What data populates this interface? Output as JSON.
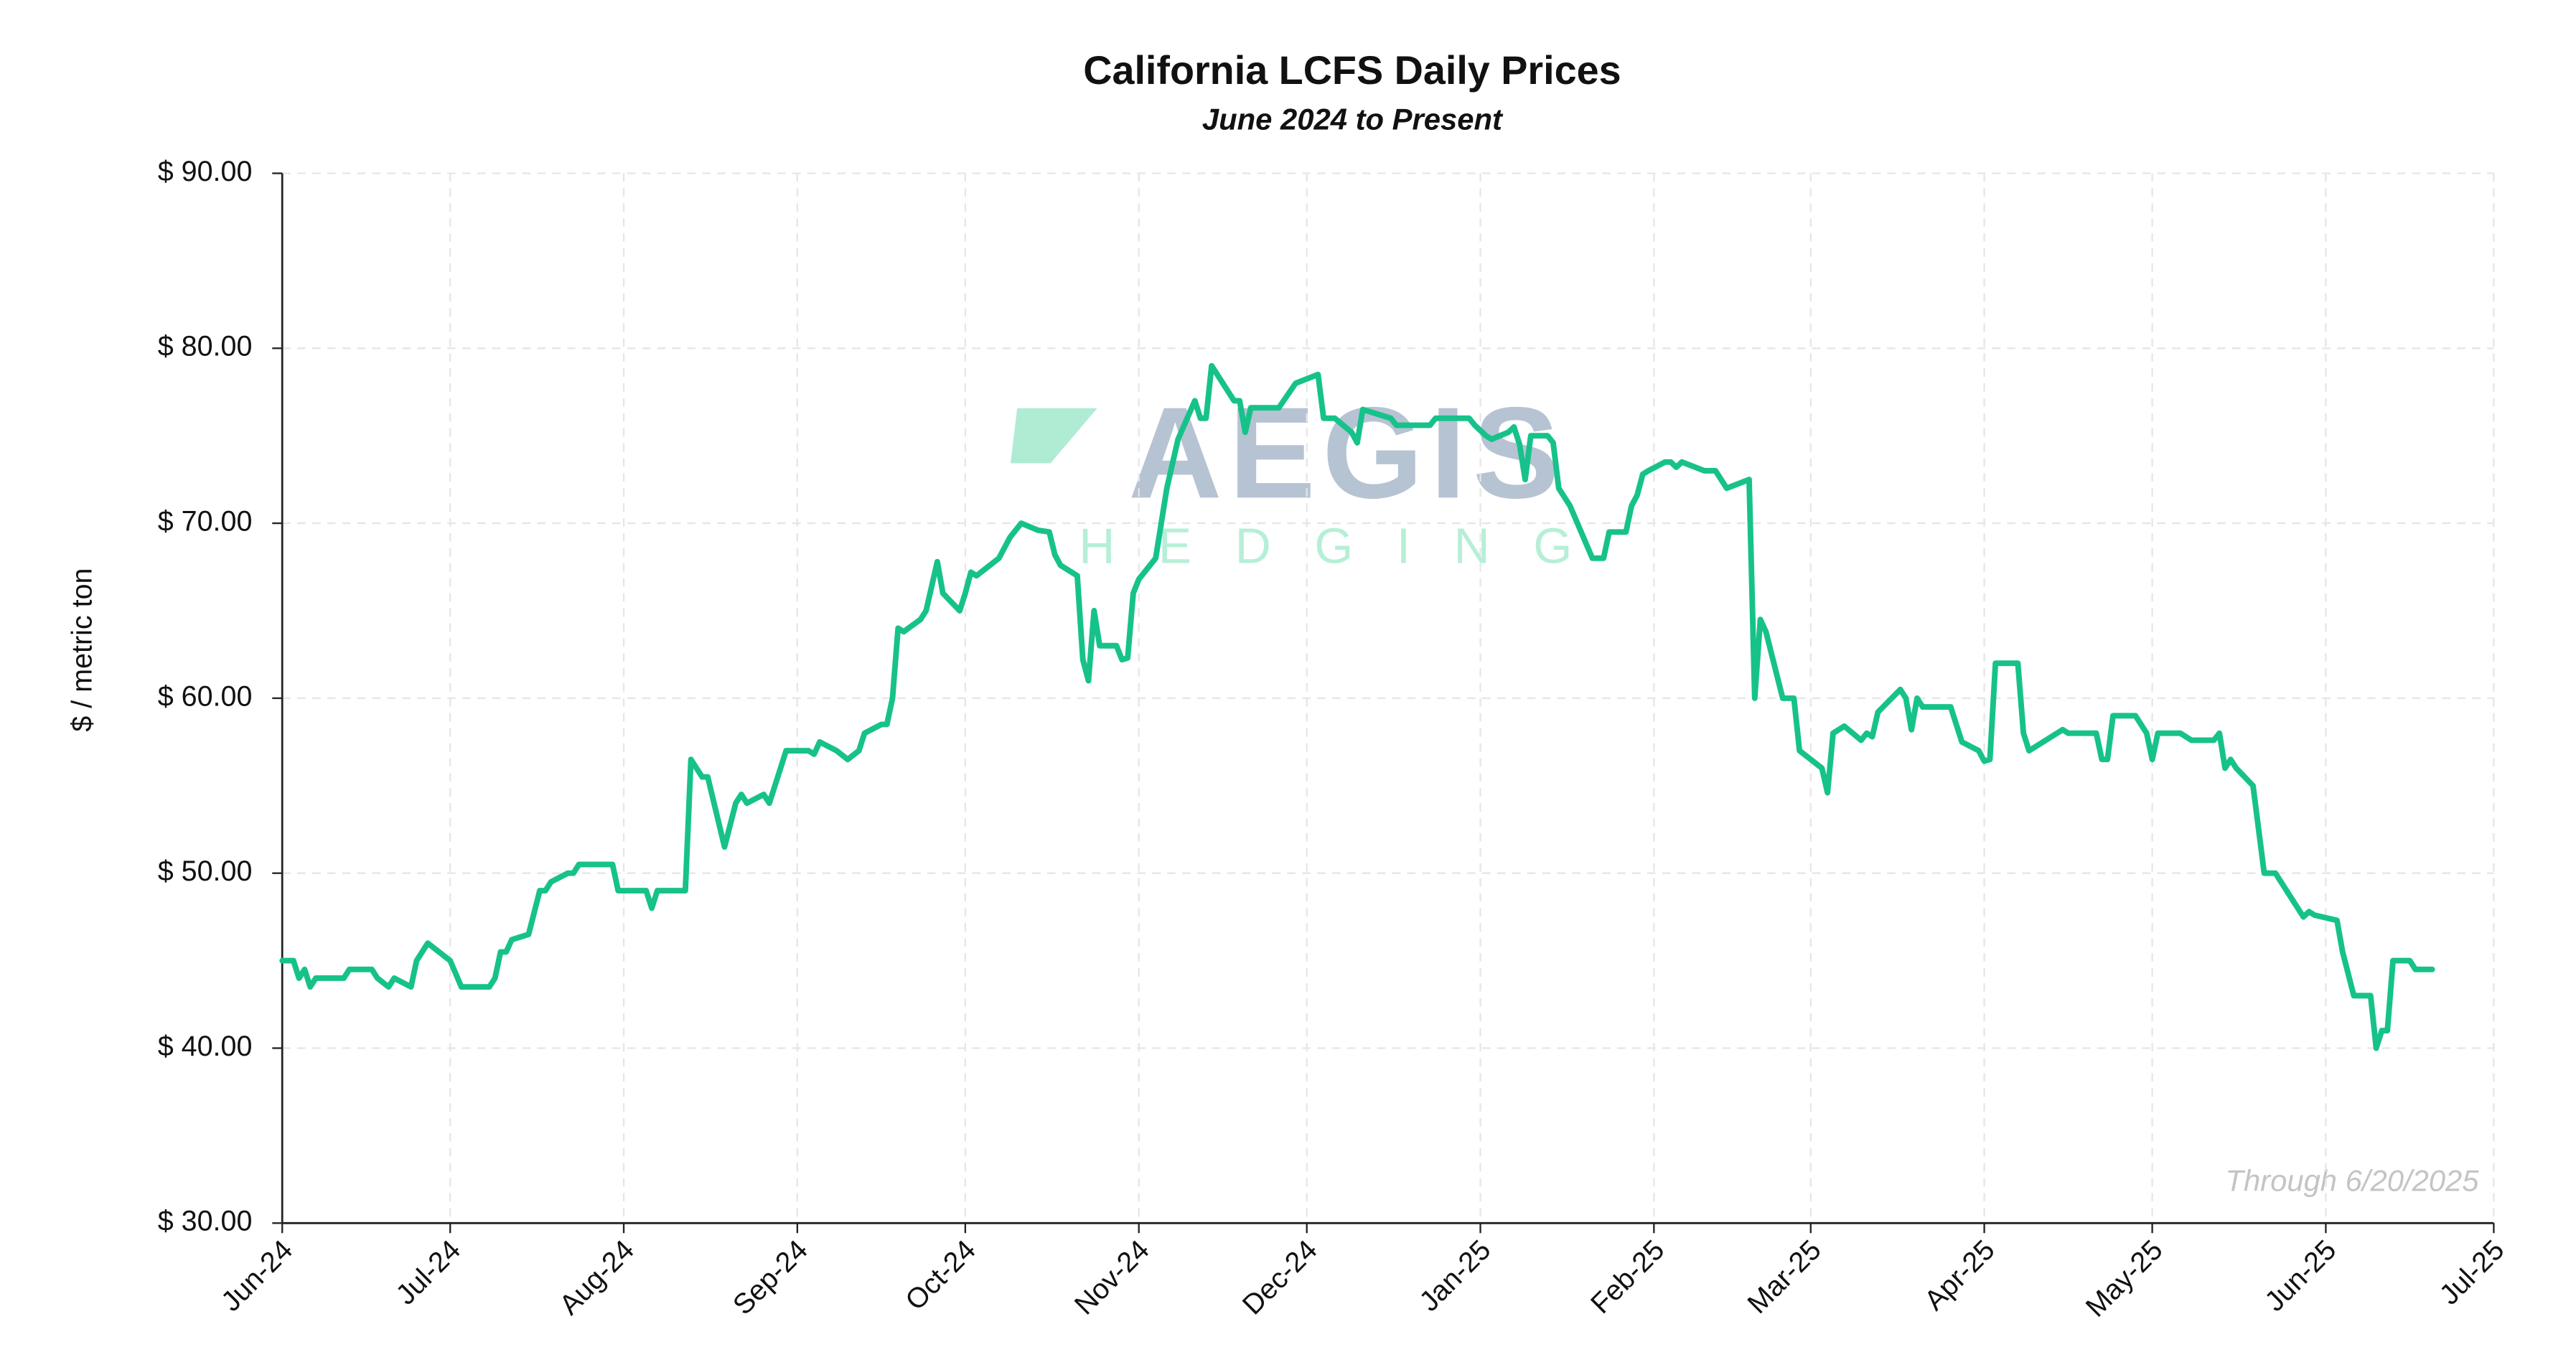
{
  "chart_data": {
    "type": "line",
    "title": "California LCFS Daily Prices",
    "subtitle": "June 2024 to Present",
    "ylabel": "$ / metric ton",
    "annotation": "Through 6/20/2025",
    "watermark": [
      "AEGIS",
      "HEDGING"
    ],
    "color": "#17c28a",
    "grid": true,
    "xlim": [
      "2024-06-01",
      "2025-07-01"
    ],
    "xticks": [
      {
        "value": "2024-06-01",
        "label": "Jun-24"
      },
      {
        "value": "2024-07-01",
        "label": "Jul-24"
      },
      {
        "value": "2024-08-01",
        "label": "Aug-24"
      },
      {
        "value": "2024-09-01",
        "label": "Sep-24"
      },
      {
        "value": "2024-10-01",
        "label": "Oct-24"
      },
      {
        "value": "2024-11-01",
        "label": "Nov-24"
      },
      {
        "value": "2024-12-01",
        "label": "Dec-24"
      },
      {
        "value": "2025-01-01",
        "label": "Jan-25"
      },
      {
        "value": "2025-02-01",
        "label": "Feb-25"
      },
      {
        "value": "2025-03-01",
        "label": "Mar-25"
      },
      {
        "value": "2025-04-01",
        "label": "Apr-25"
      },
      {
        "value": "2025-05-01",
        "label": "May-25"
      },
      {
        "value": "2025-06-01",
        "label": "Jun-25"
      },
      {
        "value": "2025-07-01",
        "label": "Jul-25"
      }
    ],
    "ylim": [
      30,
      90
    ],
    "yticks": [
      {
        "value": 30,
        "label": "$ 30.00"
      },
      {
        "value": 40,
        "label": "$ 40.00"
      },
      {
        "value": 50,
        "label": "$ 50.00"
      },
      {
        "value": 60,
        "label": "$ 60.00"
      },
      {
        "value": 70,
        "label": "$ 70.00"
      },
      {
        "value": 80,
        "label": "$ 80.00"
      },
      {
        "value": 90,
        "label": "$ 90.00"
      }
    ],
    "x": [
      "2024-06-01",
      "2024-06-03",
      "2024-06-04",
      "2024-06-05",
      "2024-06-06",
      "2024-06-07",
      "2024-06-12",
      "2024-06-13",
      "2024-06-17",
      "2024-06-18",
      "2024-06-20",
      "2024-06-21",
      "2024-06-24",
      "2024-06-25",
      "2024-06-26",
      "2024-06-27",
      "2024-07-01",
      "2024-07-03",
      "2024-07-08",
      "2024-07-09",
      "2024-07-10",
      "2024-07-11",
      "2024-07-12",
      "2024-07-15",
      "2024-07-17",
      "2024-07-18",
      "2024-07-19",
      "2024-07-22",
      "2024-07-23",
      "2024-07-24",
      "2024-07-30",
      "2024-07-31",
      "2024-08-05",
      "2024-08-06",
      "2024-08-07",
      "2024-08-12",
      "2024-08-13",
      "2024-08-15",
      "2024-08-16",
      "2024-08-19",
      "2024-08-21",
      "2024-08-22",
      "2024-08-23",
      "2024-08-26",
      "2024-08-27",
      "2024-08-29",
      "2024-08-30",
      "2024-09-03",
      "2024-09-04",
      "2024-09-05",
      "2024-09-08",
      "2024-09-10",
      "2024-09-12",
      "2024-09-13",
      "2024-09-16",
      "2024-09-17",
      "2024-09-18",
      "2024-09-19",
      "2024-09-20",
      "2024-09-23",
      "2024-09-24",
      "2024-09-26",
      "2024-09-27",
      "2024-09-30",
      "2024-10-01",
      "2024-10-02",
      "2024-10-03",
      "2024-10-07",
      "2024-10-09",
      "2024-10-11",
      "2024-10-14",
      "2024-10-16",
      "2024-10-17",
      "2024-10-18",
      "2024-10-21",
      "2024-10-22",
      "2024-10-23",
      "2024-10-24",
      "2024-10-25",
      "2024-10-28",
      "2024-10-29",
      "2024-10-30",
      "2024-10-31",
      "2024-11-01",
      "2024-11-04",
      "2024-11-06",
      "2024-11-08",
      "2024-11-11",
      "2024-11-12",
      "2024-11-13",
      "2024-11-14",
      "2024-11-18",
      "2024-11-19",
      "2024-11-20",
      "2024-11-21",
      "2024-11-26",
      "2024-11-29",
      "2024-12-03",
      "2024-12-04",
      "2024-12-06",
      "2024-12-09",
      "2024-12-10",
      "2024-12-11",
      "2024-12-12",
      "2024-12-16",
      "2024-12-17",
      "2024-12-23",
      "2024-12-24",
      "2024-12-30",
      "2024-12-31",
      "2025-01-02",
      "2025-01-03",
      "2025-01-06",
      "2025-01-07",
      "2025-01-08",
      "2025-01-09",
      "2025-01-10",
      "2025-01-13",
      "2025-01-14",
      "2025-01-15",
      "2025-01-17",
      "2025-01-21",
      "2025-01-23",
      "2025-01-24",
      "2025-01-27",
      "2025-01-28",
      "2025-01-29",
      "2025-01-30",
      "2025-01-31",
      "2025-02-03",
      "2025-02-04",
      "2025-02-05",
      "2025-02-06",
      "2025-02-10",
      "2025-02-12",
      "2025-02-14",
      "2025-02-18",
      "2025-02-19",
      "2025-02-20",
      "2025-02-21",
      "2025-02-24",
      "2025-02-26",
      "2025-02-27",
      "2025-03-03",
      "2025-03-04",
      "2025-03-05",
      "2025-03-06",
      "2025-03-07",
      "2025-03-10",
      "2025-03-11",
      "2025-03-12",
      "2025-03-13",
      "2025-03-17",
      "2025-03-18",
      "2025-03-19",
      "2025-03-20",
      "2025-03-21",
      "2025-03-26",
      "2025-03-28",
      "2025-03-31",
      "2025-04-01",
      "2025-04-02",
      "2025-04-03",
      "2025-04-07",
      "2025-04-08",
      "2025-04-09",
      "2025-04-14",
      "2025-04-15",
      "2025-04-16",
      "2025-04-21",
      "2025-04-22",
      "2025-04-23",
      "2025-04-24",
      "2025-04-28",
      "2025-04-30",
      "2025-05-01",
      "2025-05-02",
      "2025-05-06",
      "2025-05-08",
      "2025-05-12",
      "2025-05-13",
      "2025-05-14",
      "2025-05-15",
      "2025-05-16",
      "2025-05-19",
      "2025-05-21",
      "2025-05-23",
      "2025-05-28",
      "2025-05-29",
      "2025-05-30",
      "2025-06-03",
      "2025-06-04",
      "2025-06-06",
      "2025-06-09",
      "2025-06-10",
      "2025-06-11",
      "2025-06-12",
      "2025-06-13",
      "2025-06-16",
      "2025-06-17",
      "2025-06-20"
    ],
    "values": [
      45,
      45,
      44,
      44.5,
      43.5,
      44,
      44,
      44.5,
      44.5,
      44,
      43.5,
      44,
      43.5,
      45,
      45.5,
      46,
      45,
      43.5,
      43.5,
      44,
      45.5,
      45.5,
      46.2,
      46.5,
      49,
      49,
      49.5,
      50,
      50,
      50.5,
      50.5,
      49,
      49,
      48,
      49,
      49,
      56.5,
      55.5,
      55.5,
      51.5,
      54,
      54.5,
      54,
      54.5,
      54,
      56,
      57,
      57,
      56.8,
      57.5,
      57,
      56.5,
      57,
      58,
      58.5,
      58.5,
      60,
      64,
      63.8,
      64.5,
      65,
      67.8,
      66,
      65,
      66,
      67.2,
      67,
      68,
      69.2,
      70,
      69.6,
      69.5,
      68.2,
      67.6,
      67,
      62.2,
      61,
      65,
      63,
      63,
      62.2,
      62.3,
      66,
      66.8,
      68,
      72,
      74.8,
      77,
      76,
      76,
      79,
      77,
      77,
      75.2,
      76.6,
      76.6,
      78,
      78.5,
      76,
      76,
      75.2,
      74.6,
      76.5,
      76.4,
      76,
      75.6,
      75.6,
      76,
      76,
      75.6,
      75,
      74.8,
      75.2,
      75.5,
      74.5,
      72.5,
      75,
      75,
      74.6,
      72,
      71,
      68,
      68,
      69.5,
      69.5,
      71,
      71.6,
      72.8,
      73,
      73.5,
      73.5,
      73.2,
      73.5,
      73,
      73,
      72,
      72.5,
      60,
      64.5,
      63.8,
      60,
      60,
      57,
      56,
      54.6,
      58,
      58.2,
      58.4,
      57.6,
      58,
      57.8,
      59.2,
      60.5,
      60,
      58.2,
      60,
      59.5,
      59.5,
      57.5,
      57,
      56.4,
      56.5,
      62,
      62,
      58,
      57,
      58,
      58.2,
      58,
      58,
      56.5,
      56.5,
      59,
      59,
      58,
      56.5,
      58,
      58,
      57.6,
      57.6,
      58,
      56,
      56.5,
      56,
      55,
      50,
      50,
      47.5,
      47.8,
      47.6,
      47.3,
      45.5,
      43,
      43,
      40,
      41,
      41,
      45,
      45,
      44.5,
      44.5
    ]
  }
}
